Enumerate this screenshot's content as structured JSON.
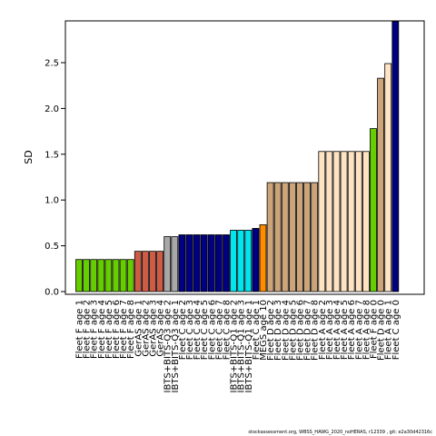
{
  "chart_data": {
    "type": "bar",
    "ylabel": "SD",
    "ylim": [
      0,
      2.95
    ],
    "yticks": [
      0.0,
      0.5,
      1.0,
      1.5,
      2.0,
      2.5
    ],
    "ytick_labels": [
      "0.0",
      "0.5",
      "1.0",
      "1.5",
      "2.0",
      "2.5"
    ],
    "grid": false,
    "categories": [
      "Fleet F age 1",
      "Fleet F age 2",
      "Fleet F age 3",
      "Fleet F age 4",
      "Fleet F age 5",
      "Fleet F age 6",
      "Fleet F age 7",
      "Fleet F age 8",
      "GerAS age 1",
      "GerAS age 2",
      "GerAS age 3",
      "GerAS age 4",
      "IBTS+BITS-Q3 age 2",
      "IBTS+BITS-Q3 age 1",
      "Fleet C age 2",
      "Fleet C age 3",
      "Fleet C age 4",
      "Fleet C age 5",
      "Fleet C age 6",
      "Fleet C age 7",
      "Fleet C age 8",
      "IBTS+BITS-Q1 age 2",
      "IBTS+BITS-Q1 age 3",
      "IBTS+BITS-Q1 age 1",
      "Fleet C age 1",
      "MEGS age 10",
      "Fleet D age 2",
      "Fleet D age 3",
      "Fleet D age 4",
      "Fleet D age 5",
      "Fleet D age 6",
      "Fleet D age 7",
      "Fleet D age 8",
      "Fleet A age 2",
      "Fleet A age 3",
      "Fleet A age 4",
      "Fleet A age 5",
      "Fleet A age 6",
      "Fleet A age 7",
      "Fleet A age 8",
      "Fleet F age 0",
      "Fleet D age 0",
      "Fleet A age 1",
      "Fleet C age 0"
    ],
    "values": [
      0.35,
      0.35,
      0.35,
      0.35,
      0.35,
      0.35,
      0.35,
      0.35,
      0.44,
      0.44,
      0.44,
      0.44,
      0.6,
      0.6,
      0.62,
      0.62,
      0.62,
      0.62,
      0.62,
      0.62,
      0.62,
      0.67,
      0.67,
      0.67,
      0.69,
      0.73,
      1.19,
      1.19,
      1.19,
      1.19,
      1.19,
      1.19,
      1.19,
      1.53,
      1.53,
      1.53,
      1.53,
      1.53,
      1.53,
      1.53,
      1.78,
      2.33,
      2.49,
      2.95
    ],
    "colors": [
      "#66cd00",
      "#66cd00",
      "#66cd00",
      "#66cd00",
      "#66cd00",
      "#66cd00",
      "#66cd00",
      "#66cd00",
      "#cd5c45",
      "#cd5c45",
      "#cd5c45",
      "#cd5c45",
      "#a8a8a8",
      "#a8a8a8",
      "#000080",
      "#000080",
      "#000080",
      "#000080",
      "#000080",
      "#000080",
      "#000080",
      "#00e5ee",
      "#00e5ee",
      "#00e5ee",
      "#000080",
      "#ff8c00",
      "#cba47a",
      "#cba47a",
      "#cba47a",
      "#cba47a",
      "#cba47a",
      "#cba47a",
      "#cba47a",
      "#ffe4c4",
      "#ffe4c4",
      "#ffe4c4",
      "#ffe4c4",
      "#ffe4c4",
      "#ffe4c4",
      "#ffe4c4",
      "#66cd00",
      "#cba47a",
      "#ffe4c4",
      "#000080"
    ]
  },
  "footer": {
    "text": "stockassessment.org,  WBSS_HAWG_2020_noHERAS, r12339 ,  git:  e2a30d42316c"
  }
}
